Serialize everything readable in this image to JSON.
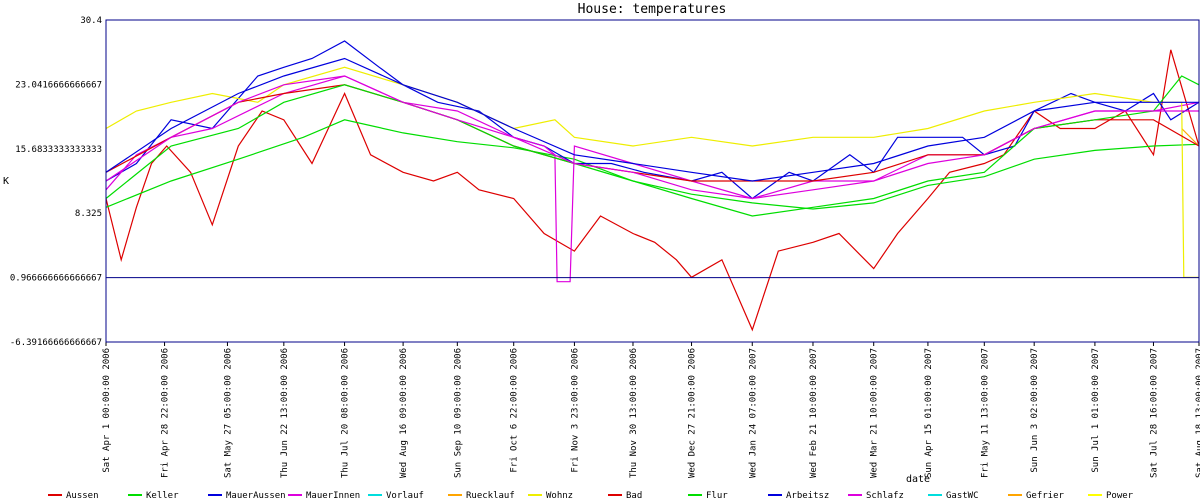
{
  "chart_data": {
    "type": "line",
    "title": "House: temperatures",
    "xlabel": "date",
    "ylabel": "K",
    "ylim": [
      -6.39166666666667,
      30.4
    ],
    "yticks": [
      "30.4",
      "23.0416666666667",
      "15.6833333333333",
      "8.325",
      "0.966666666666667",
      "-6.39166666666667"
    ],
    "yticks_values": [
      30.4,
      23.0416666666667,
      15.6833333333333,
      8.325,
      0.966666666666667,
      -6.39166666666667
    ],
    "hline": 0.966666666666667,
    "x_start": "2006-04-01",
    "x_end": "2007-08-18",
    "x_ticks": [
      {
        "label": "Sat Apr  1 00:00:00 2006",
        "date": "2006-04-01"
      },
      {
        "label": "Fri Apr 28 22:00:00 2006",
        "date": "2006-04-28"
      },
      {
        "label": "Sat May 27 05:00:00 2006",
        "date": "2006-05-27"
      },
      {
        "label": "Thu Jun 22 13:00:00 2006",
        "date": "2006-06-22"
      },
      {
        "label": "Thu Jul 20 08:00:00 2006",
        "date": "2006-07-20"
      },
      {
        "label": "Wed Aug 16 09:00:00 2006",
        "date": "2006-08-16"
      },
      {
        "label": "Sun Sep 10 09:00:00 2006",
        "date": "2006-09-10"
      },
      {
        "label": "Fri Oct  6 22:00:00 2006",
        "date": "2006-10-06"
      },
      {
        "label": "Fri Nov  3 23:00:00 2006",
        "date": "2006-11-03"
      },
      {
        "label": "Thu Nov 30 13:00:00 2006",
        "date": "2006-11-30"
      },
      {
        "label": "Wed Dec 27 21:00:00 2006",
        "date": "2006-12-27"
      },
      {
        "label": "Wed Jan 24 07:00:00 2007",
        "date": "2007-01-24"
      },
      {
        "label": "Wed Feb 21 10:00:00 2007",
        "date": "2007-02-21"
      },
      {
        "label": "Wed Mar 21 10:00:00 2007",
        "date": "2007-03-21"
      },
      {
        "label": "Sun Apr 15 01:00:00 2007",
        "date": "2007-04-15"
      },
      {
        "label": "Fri May 11 13:00:00 2007",
        "date": "2007-05-11"
      },
      {
        "label": "Sun Jun  3 02:00:00 2007",
        "date": "2007-06-03"
      },
      {
        "label": "Sun Jul  1 01:00:00 2007",
        "date": "2007-07-01"
      },
      {
        "label": "Sat Jul 28 16:00:00 2007",
        "date": "2007-07-28"
      },
      {
        "label": "Sat Aug 18 13:00:00 2007",
        "date": "2007-08-18"
      }
    ],
    "legend_position": "bottom",
    "series": [
      {
        "name": "Aussen",
        "color": "#dd0000",
        "x": [
          "2006-04-01",
          "2006-04-08",
          "2006-04-15",
          "2006-04-22",
          "2006-04-29",
          "2006-05-10",
          "2006-05-20",
          "2006-06-01",
          "2006-06-12",
          "2006-06-22",
          "2006-07-05",
          "2006-07-20",
          "2006-08-01",
          "2006-08-16",
          "2006-08-30",
          "2006-09-10",
          "2006-09-20",
          "2006-10-06",
          "2006-10-20",
          "2006-11-03",
          "2006-11-15",
          "2006-11-30",
          "2006-12-10",
          "2006-12-20",
          "2006-12-27",
          "2007-01-10",
          "2007-01-24",
          "2007-02-05",
          "2007-02-21",
          "2007-03-05",
          "2007-03-21",
          "2007-04-01",
          "2007-04-15",
          "2007-04-25",
          "2007-05-11",
          "2007-05-20",
          "2007-06-03",
          "2007-06-15",
          "2007-07-01",
          "2007-07-15",
          "2007-07-28",
          "2007-08-05",
          "2007-08-18"
        ],
        "values": [
          10,
          3,
          9,
          14,
          16,
          13,
          7,
          16,
          20,
          19,
          14,
          22,
          15,
          13,
          12,
          13,
          11,
          10,
          6,
          4,
          8,
          6,
          5,
          3,
          1,
          3,
          -5,
          4,
          5,
          6,
          2,
          6,
          10,
          13,
          14,
          15,
          20,
          18,
          18,
          20,
          15,
          27,
          16
        ]
      },
      {
        "name": "Keller",
        "color": "#00dd00",
        "x": [
          "2006-04-01",
          "2006-05-01",
          "2006-06-01",
          "2006-07-01",
          "2006-07-20",
          "2006-08-16",
          "2006-09-10",
          "2006-10-06",
          "2006-11-03",
          "2006-11-30",
          "2006-12-27",
          "2007-01-24",
          "2007-02-21",
          "2007-03-21",
          "2007-04-15",
          "2007-05-11",
          "2007-06-03",
          "2007-07-01",
          "2007-07-28",
          "2007-08-18"
        ],
        "values": [
          9,
          12,
          14.5,
          17,
          19,
          17.5,
          16.5,
          15.8,
          14.5,
          12,
          10.5,
          9.5,
          8.8,
          9.5,
          11.5,
          12.5,
          14.5,
          15.5,
          16,
          16.2
        ]
      },
      {
        "name": "MauerAussen",
        "color": "#0000dd",
        "x": [
          "2006-04-01",
          "2006-04-15",
          "2006-05-01",
          "2006-05-20",
          "2006-06-10",
          "2006-06-22",
          "2006-07-05",
          "2006-07-20",
          "2006-08-05",
          "2006-08-16",
          "2006-09-01",
          "2006-09-20",
          "2006-10-06",
          "2006-10-20",
          "2006-11-03",
          "2006-11-20",
          "2006-12-05",
          "2006-12-27",
          "2007-01-10",
          "2007-01-24",
          "2007-02-10",
          "2007-02-21",
          "2007-03-10",
          "2007-03-21",
          "2007-04-01",
          "2007-04-15",
          "2007-05-01",
          "2007-05-11",
          "2007-05-25",
          "2007-06-03",
          "2007-06-20",
          "2007-07-01",
          "2007-07-15",
          "2007-07-28",
          "2007-08-05",
          "2007-08-18"
        ],
        "values": [
          12,
          14,
          19,
          18,
          24,
          25,
          26,
          28,
          25,
          23,
          21,
          20,
          17,
          16,
          14,
          14,
          13,
          12,
          13,
          10,
          13,
          12,
          15,
          13,
          17,
          17,
          17,
          15,
          16,
          20,
          22,
          21,
          20,
          22,
          19,
          21
        ]
      },
      {
        "name": "MauerInnen",
        "color": "#dd00dd",
        "x": [
          "2006-04-01",
          "2006-04-15",
          "2006-05-01",
          "2006-05-20",
          "2006-06-22",
          "2006-07-20",
          "2006-08-16",
          "2006-09-10",
          "2006-10-06",
          "2006-10-20",
          "2006-10-25",
          "2006-10-26",
          "2006-11-01",
          "2006-11-03",
          "2006-11-30",
          "2006-12-27",
          "2007-01-24",
          "2007-02-21",
          "2007-03-21",
          "2007-04-15",
          "2007-05-11",
          "2007-06-03",
          "2007-07-01",
          "2007-07-28",
          "2007-08-18"
        ],
        "values": [
          11,
          15,
          17,
          18,
          22,
          24,
          21,
          20,
          17,
          16,
          15,
          0.5,
          0.5,
          16,
          14,
          12,
          10,
          12,
          12,
          15,
          15,
          18,
          20,
          20,
          21
        ]
      },
      {
        "name": "Vorlauf",
        "color": "#00dddd",
        "x": [],
        "values": []
      },
      {
        "name": "Ruecklauf",
        "color": "#ffa500",
        "x": [
          "2007-08-10",
          "2007-08-18"
        ],
        "values": [
          18,
          16
        ]
      },
      {
        "name": "Wohnz",
        "color": "#eeee00",
        "x": [
          "2006-04-01",
          "2006-04-15",
          "2006-05-01",
          "2006-05-20",
          "2006-06-10",
          "2006-06-22",
          "2006-07-20",
          "2006-08-16",
          "2006-09-10",
          "2006-10-06",
          "2006-10-25",
          "2006-11-03",
          "2006-11-30",
          "2006-12-27",
          "2007-01-24",
          "2007-02-21",
          "2007-03-21",
          "2007-04-15",
          "2007-05-11",
          "2007-06-03",
          "2007-07-01",
          "2007-07-28",
          "2007-08-10",
          "2007-08-11",
          "2007-08-18"
        ],
        "values": [
          18,
          20,
          21,
          22,
          21,
          23,
          25,
          23,
          21,
          18,
          19,
          17,
          16,
          17,
          16,
          17,
          17,
          18,
          20,
          21,
          22,
          21,
          21,
          1,
          1
        ]
      },
      {
        "name": "Bad",
        "color": "#dd0000",
        "x": [
          "2006-04-01",
          "2006-05-01",
          "2006-06-01",
          "2006-06-22",
          "2006-07-20",
          "2006-08-16",
          "2006-09-10",
          "2006-10-06",
          "2006-11-03",
          "2006-11-30",
          "2006-12-27",
          "2007-01-24",
          "2007-02-21",
          "2007-03-21",
          "2007-04-15",
          "2007-05-11",
          "2007-06-03",
          "2007-07-01",
          "2007-07-28",
          "2007-08-18"
        ],
        "values": [
          13,
          17,
          21,
          22,
          23,
          21,
          19,
          16,
          14,
          13,
          12,
          12,
          12,
          13,
          15,
          15,
          18,
          19,
          19,
          16
        ]
      },
      {
        "name": "Flur",
        "color": "#00dd00",
        "x": [
          "2006-04-01",
          "2006-05-01",
          "2006-06-01",
          "2006-06-22",
          "2006-07-20",
          "2006-08-16",
          "2006-09-10",
          "2006-10-06",
          "2006-11-03",
          "2006-11-30",
          "2006-12-27",
          "2007-01-24",
          "2007-02-21",
          "2007-03-21",
          "2007-04-15",
          "2007-05-11",
          "2007-06-03",
          "2007-07-01",
          "2007-07-28",
          "2007-08-10",
          "2007-08-18"
        ],
        "values": [
          10,
          16,
          18,
          21,
          23,
          21,
          19,
          16,
          14,
          12,
          10,
          8,
          9,
          10,
          12,
          13,
          18,
          19,
          20,
          24,
          23
        ]
      },
      {
        "name": "Arbeitsz",
        "color": "#0000dd",
        "x": [
          "2006-04-01",
          "2006-05-01",
          "2006-06-01",
          "2006-06-22",
          "2006-07-20",
          "2006-08-16",
          "2006-09-10",
          "2006-10-06",
          "2006-11-03",
          "2006-11-30",
          "2006-12-27",
          "2007-01-24",
          "2007-02-21",
          "2007-03-21",
          "2007-04-15",
          "2007-05-11",
          "2007-06-03",
          "2007-07-01",
          "2007-07-28",
          "2007-08-18"
        ],
        "values": [
          13,
          18,
          22,
          24,
          26,
          23,
          21,
          18,
          15,
          14,
          13,
          12,
          13,
          14,
          16,
          17,
          20,
          21,
          21,
          21
        ]
      },
      {
        "name": "Schlafz",
        "color": "#dd00dd",
        "x": [
          "2006-04-01",
          "2006-05-01",
          "2006-06-01",
          "2006-06-22",
          "2006-07-20",
          "2006-08-16",
          "2006-09-10",
          "2006-10-06",
          "2006-11-03",
          "2006-11-30",
          "2006-12-27",
          "2007-01-24",
          "2007-02-21",
          "2007-03-21",
          "2007-04-15",
          "2007-05-11",
          "2007-06-03",
          "2007-07-01",
          "2007-07-28",
          "2007-08-18"
        ],
        "values": [
          12,
          17,
          21,
          23,
          24,
          21,
          19,
          17,
          14,
          13,
          11,
          10,
          11,
          12,
          14,
          15,
          18,
          20,
          20,
          20
        ]
      },
      {
        "name": "GastWC",
        "color": "#00dddd",
        "x": [],
        "values": []
      },
      {
        "name": "Gefrier",
        "color": "#ffa500",
        "x": [],
        "values": []
      },
      {
        "name": "Power",
        "color": "#ffff00",
        "x": [],
        "values": []
      }
    ]
  }
}
